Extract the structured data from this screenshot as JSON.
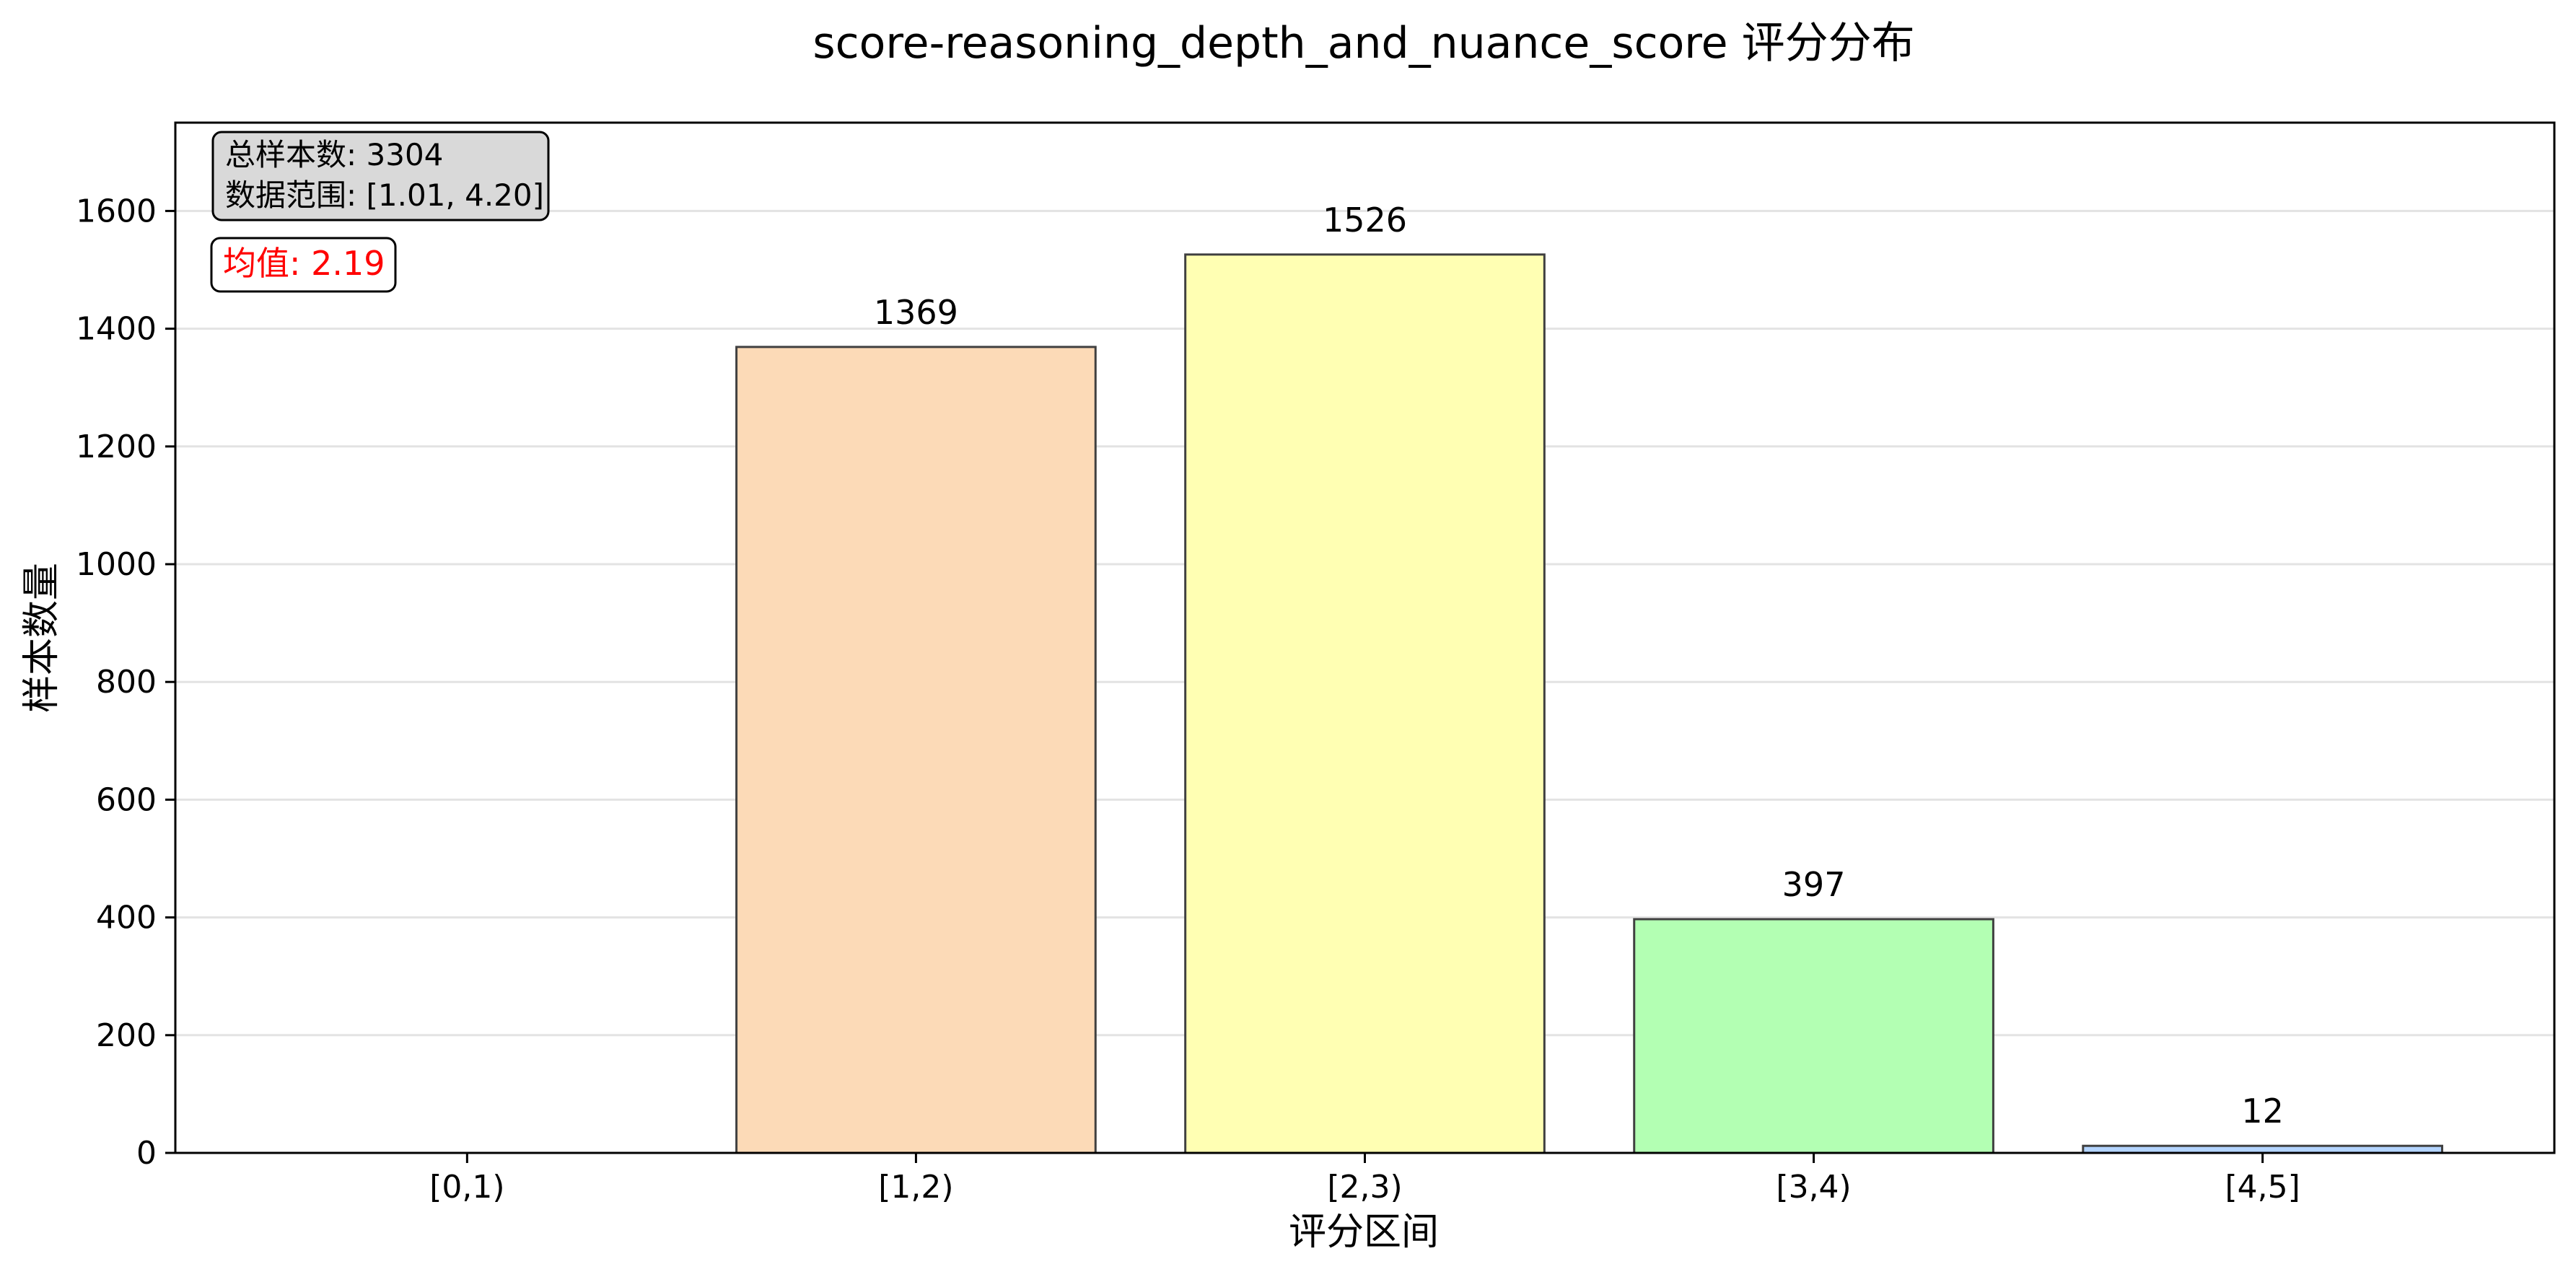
{
  "chart_data": {
    "type": "bar",
    "title": "score-reasoning_depth_and_nuance_score 评分分布",
    "xlabel": "评分区间",
    "ylabel": "样本数量",
    "categories": [
      "[0,1)",
      "[1,2)",
      "[2,3)",
      "[3,4)",
      "[4,5]"
    ],
    "values": [
      0,
      1369,
      1526,
      397,
      12
    ],
    "bar_colors": [
      "#ffb3b3",
      "#fcdab7",
      "#ffffb3",
      "#b3ffb3",
      "#b3d4ff"
    ],
    "ylim": [
      0,
      1750
    ],
    "yticks": [
      0,
      200,
      400,
      600,
      800,
      1000,
      1200,
      1400,
      1600
    ],
    "grid": "horizontal",
    "info_box": {
      "line1": "总样本数: 3304",
      "line2": "数据范围: [1.01, 4.20]",
      "position": "top-left"
    },
    "mean_box": {
      "text": "均值: 2.19",
      "color": "#ff0000",
      "position": "top-left"
    }
  }
}
